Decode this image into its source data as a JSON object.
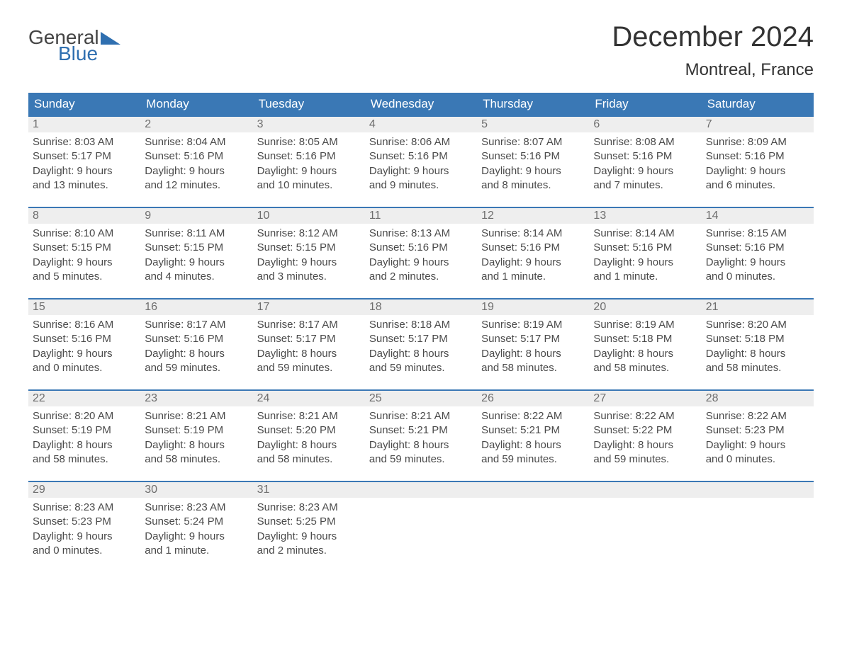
{
  "logo": {
    "text1": "General",
    "text2": "Blue"
  },
  "title": "December 2024",
  "location": "Montreal, France",
  "colors": {
    "header_bg": "#3a78b5",
    "header_text": "#ffffff",
    "daynum_bg": "#eeeeee",
    "daynum_text": "#6e6e6e",
    "body_text": "#4a4a4a",
    "logo_accent": "#2f6fb0"
  },
  "days_of_week": [
    "Sunday",
    "Monday",
    "Tuesday",
    "Wednesday",
    "Thursday",
    "Friday",
    "Saturday"
  ],
  "weeks": [
    [
      {
        "n": "1",
        "sunrise": "Sunrise: 8:03 AM",
        "sunset": "Sunset: 5:17 PM",
        "d1": "Daylight: 9 hours",
        "d2": "and 13 minutes."
      },
      {
        "n": "2",
        "sunrise": "Sunrise: 8:04 AM",
        "sunset": "Sunset: 5:16 PM",
        "d1": "Daylight: 9 hours",
        "d2": "and 12 minutes."
      },
      {
        "n": "3",
        "sunrise": "Sunrise: 8:05 AM",
        "sunset": "Sunset: 5:16 PM",
        "d1": "Daylight: 9 hours",
        "d2": "and 10 minutes."
      },
      {
        "n": "4",
        "sunrise": "Sunrise: 8:06 AM",
        "sunset": "Sunset: 5:16 PM",
        "d1": "Daylight: 9 hours",
        "d2": "and 9 minutes."
      },
      {
        "n": "5",
        "sunrise": "Sunrise: 8:07 AM",
        "sunset": "Sunset: 5:16 PM",
        "d1": "Daylight: 9 hours",
        "d2": "and 8 minutes."
      },
      {
        "n": "6",
        "sunrise": "Sunrise: 8:08 AM",
        "sunset": "Sunset: 5:16 PM",
        "d1": "Daylight: 9 hours",
        "d2": "and 7 minutes."
      },
      {
        "n": "7",
        "sunrise": "Sunrise: 8:09 AM",
        "sunset": "Sunset: 5:16 PM",
        "d1": "Daylight: 9 hours",
        "d2": "and 6 minutes."
      }
    ],
    [
      {
        "n": "8",
        "sunrise": "Sunrise: 8:10 AM",
        "sunset": "Sunset: 5:15 PM",
        "d1": "Daylight: 9 hours",
        "d2": "and 5 minutes."
      },
      {
        "n": "9",
        "sunrise": "Sunrise: 8:11 AM",
        "sunset": "Sunset: 5:15 PM",
        "d1": "Daylight: 9 hours",
        "d2": "and 4 minutes."
      },
      {
        "n": "10",
        "sunrise": "Sunrise: 8:12 AM",
        "sunset": "Sunset: 5:15 PM",
        "d1": "Daylight: 9 hours",
        "d2": "and 3 minutes."
      },
      {
        "n": "11",
        "sunrise": "Sunrise: 8:13 AM",
        "sunset": "Sunset: 5:16 PM",
        "d1": "Daylight: 9 hours",
        "d2": "and 2 minutes."
      },
      {
        "n": "12",
        "sunrise": "Sunrise: 8:14 AM",
        "sunset": "Sunset: 5:16 PM",
        "d1": "Daylight: 9 hours",
        "d2": "and 1 minute."
      },
      {
        "n": "13",
        "sunrise": "Sunrise: 8:14 AM",
        "sunset": "Sunset: 5:16 PM",
        "d1": "Daylight: 9 hours",
        "d2": "and 1 minute."
      },
      {
        "n": "14",
        "sunrise": "Sunrise: 8:15 AM",
        "sunset": "Sunset: 5:16 PM",
        "d1": "Daylight: 9 hours",
        "d2": "and 0 minutes."
      }
    ],
    [
      {
        "n": "15",
        "sunrise": "Sunrise: 8:16 AM",
        "sunset": "Sunset: 5:16 PM",
        "d1": "Daylight: 9 hours",
        "d2": "and 0 minutes."
      },
      {
        "n": "16",
        "sunrise": "Sunrise: 8:17 AM",
        "sunset": "Sunset: 5:16 PM",
        "d1": "Daylight: 8 hours",
        "d2": "and 59 minutes."
      },
      {
        "n": "17",
        "sunrise": "Sunrise: 8:17 AM",
        "sunset": "Sunset: 5:17 PM",
        "d1": "Daylight: 8 hours",
        "d2": "and 59 minutes."
      },
      {
        "n": "18",
        "sunrise": "Sunrise: 8:18 AM",
        "sunset": "Sunset: 5:17 PM",
        "d1": "Daylight: 8 hours",
        "d2": "and 59 minutes."
      },
      {
        "n": "19",
        "sunrise": "Sunrise: 8:19 AM",
        "sunset": "Sunset: 5:17 PM",
        "d1": "Daylight: 8 hours",
        "d2": "and 58 minutes."
      },
      {
        "n": "20",
        "sunrise": "Sunrise: 8:19 AM",
        "sunset": "Sunset: 5:18 PM",
        "d1": "Daylight: 8 hours",
        "d2": "and 58 minutes."
      },
      {
        "n": "21",
        "sunrise": "Sunrise: 8:20 AM",
        "sunset": "Sunset: 5:18 PM",
        "d1": "Daylight: 8 hours",
        "d2": "and 58 minutes."
      }
    ],
    [
      {
        "n": "22",
        "sunrise": "Sunrise: 8:20 AM",
        "sunset": "Sunset: 5:19 PM",
        "d1": "Daylight: 8 hours",
        "d2": "and 58 minutes."
      },
      {
        "n": "23",
        "sunrise": "Sunrise: 8:21 AM",
        "sunset": "Sunset: 5:19 PM",
        "d1": "Daylight: 8 hours",
        "d2": "and 58 minutes."
      },
      {
        "n": "24",
        "sunrise": "Sunrise: 8:21 AM",
        "sunset": "Sunset: 5:20 PM",
        "d1": "Daylight: 8 hours",
        "d2": "and 58 minutes."
      },
      {
        "n": "25",
        "sunrise": "Sunrise: 8:21 AM",
        "sunset": "Sunset: 5:21 PM",
        "d1": "Daylight: 8 hours",
        "d2": "and 59 minutes."
      },
      {
        "n": "26",
        "sunrise": "Sunrise: 8:22 AM",
        "sunset": "Sunset: 5:21 PM",
        "d1": "Daylight: 8 hours",
        "d2": "and 59 minutes."
      },
      {
        "n": "27",
        "sunrise": "Sunrise: 8:22 AM",
        "sunset": "Sunset: 5:22 PM",
        "d1": "Daylight: 8 hours",
        "d2": "and 59 minutes."
      },
      {
        "n": "28",
        "sunrise": "Sunrise: 8:22 AM",
        "sunset": "Sunset: 5:23 PM",
        "d1": "Daylight: 9 hours",
        "d2": "and 0 minutes."
      }
    ],
    [
      {
        "n": "29",
        "sunrise": "Sunrise: 8:23 AM",
        "sunset": "Sunset: 5:23 PM",
        "d1": "Daylight: 9 hours",
        "d2": "and 0 minutes."
      },
      {
        "n": "30",
        "sunrise": "Sunrise: 8:23 AM",
        "sunset": "Sunset: 5:24 PM",
        "d1": "Daylight: 9 hours",
        "d2": "and 1 minute."
      },
      {
        "n": "31",
        "sunrise": "Sunrise: 8:23 AM",
        "sunset": "Sunset: 5:25 PM",
        "d1": "Daylight: 9 hours",
        "d2": "and 2 minutes."
      },
      {
        "empty": true
      },
      {
        "empty": true
      },
      {
        "empty": true
      },
      {
        "empty": true
      }
    ]
  ]
}
